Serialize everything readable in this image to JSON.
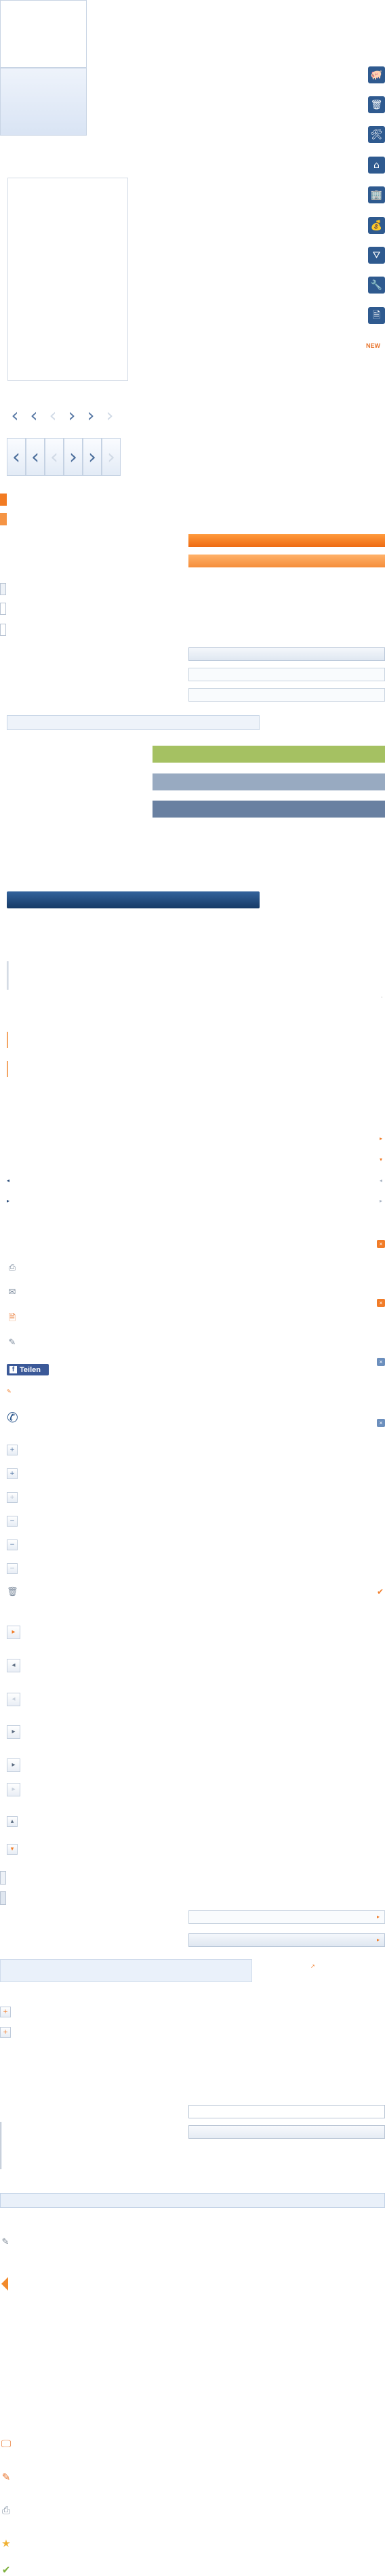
{
  "sidebar_icons": [
    {
      "name": "piggy-bank-icon",
      "glyph": "🐖"
    },
    {
      "name": "trash-bin-icon",
      "glyph": "🗑"
    },
    {
      "name": "tools-icon",
      "glyph": "🛠"
    },
    {
      "name": "house-icon",
      "glyph": "⌂"
    },
    {
      "name": "building-icon",
      "glyph": "🏢"
    },
    {
      "name": "money-icon",
      "glyph": "💰"
    },
    {
      "name": "funnel-icon",
      "glyph": "⛛"
    },
    {
      "name": "wrench-icon",
      "glyph": "🔧"
    },
    {
      "name": "document-icon",
      "glyph": "🗎"
    }
  ],
  "badge_new": "NEW",
  "facebook": {
    "label": "Teilen",
    "glyph": "f"
  },
  "colors": {
    "orange": "#f27b22",
    "navy": "#163a66",
    "green": "#a5c162",
    "steel": "#98aac1",
    "slate": "#6980a1"
  }
}
